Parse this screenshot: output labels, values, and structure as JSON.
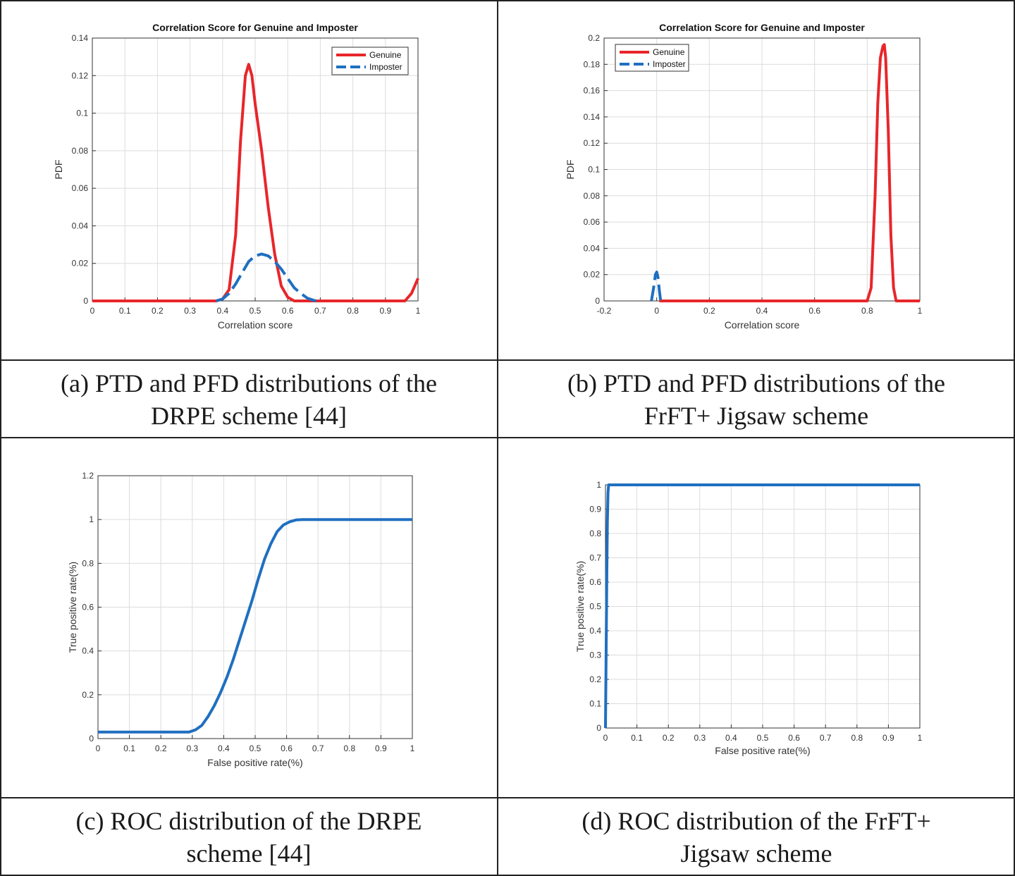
{
  "colors": {
    "genuine": "#e8262a",
    "imposter": "#1f6fc0",
    "grid": "#dcdcdc",
    "border": "#222222"
  },
  "captions": {
    "a": [
      "(a) PTD and PFD distributions of the",
      "DRPE scheme [44]"
    ],
    "b": [
      "(b) PTD and PFD distributions of the",
      "FrFT+ Jigsaw scheme"
    ],
    "c": [
      "(c) ROC distribution of the DRPE",
      "scheme [44]"
    ],
    "d": [
      "(d) ROC distribution of the FrFT+",
      "Jigsaw scheme"
    ]
  },
  "chart_data": [
    {
      "id": "a",
      "type": "line",
      "title": "Correlation Score for Genuine and Imposter",
      "xlabel": "Correlation score",
      "ylabel": "PDF",
      "xlim": [
        0,
        1
      ],
      "ylim": [
        0,
        0.14
      ],
      "xticks": [
        "0",
        "0.1",
        "0.2",
        "0.3",
        "0.4",
        "0.5",
        "0.6",
        "0.7",
        "0.8",
        "0.9",
        "1"
      ],
      "yticks": [
        "0",
        "0.02",
        "0.04",
        "0.06",
        "0.08",
        "0.1",
        "0.12",
        "0.14"
      ],
      "grid": true,
      "legend": "top-right",
      "series": [
        {
          "name": "Genuine",
          "style": "solid",
          "color": "#e8262a",
          "x": [
            0,
            0.38,
            0.4,
            0.42,
            0.44,
            0.455,
            0.47,
            0.48,
            0.49,
            0.5,
            0.52,
            0.54,
            0.56,
            0.58,
            0.6,
            0.62,
            0.96,
            0.98,
            1.0
          ],
          "y": [
            0,
            0,
            0.001,
            0.006,
            0.035,
            0.085,
            0.12,
            0.126,
            0.12,
            0.105,
            0.08,
            0.05,
            0.025,
            0.008,
            0.002,
            0,
            0,
            0.004,
            0.012
          ]
        },
        {
          "name": "Imposter",
          "style": "dashed",
          "color": "#1f6fc0",
          "x": [
            0.38,
            0.4,
            0.42,
            0.44,
            0.46,
            0.48,
            0.5,
            0.52,
            0.54,
            0.56,
            0.58,
            0.6,
            0.62,
            0.64,
            0.66,
            0.68,
            0.69
          ],
          "y": [
            0,
            0.001,
            0.004,
            0.009,
            0.015,
            0.021,
            0.024,
            0.025,
            0.024,
            0.021,
            0.017,
            0.012,
            0.007,
            0.004,
            0.0015,
            0.0003,
            0
          ]
        }
      ]
    },
    {
      "id": "b",
      "type": "line",
      "title": "Correlation Score for Genuine and Imposter",
      "xlabel": "Correlation score",
      "ylabel": "PDF",
      "xlim": [
        -0.2,
        1
      ],
      "ylim": [
        0,
        0.2
      ],
      "xticks": [
        "-0.2",
        "0",
        "0.2",
        "0.4",
        "0.6",
        "0.8",
        "1"
      ],
      "yticks": [
        "0",
        "0.02",
        "0.04",
        "0.06",
        "0.08",
        "0.1",
        "0.12",
        "0.14",
        "0.16",
        "0.18",
        "0.2"
      ],
      "grid": true,
      "legend": "top-left",
      "series": [
        {
          "name": "Genuine",
          "style": "solid",
          "color": "#e8262a",
          "x": [
            0.01,
            0.8,
            0.815,
            0.83,
            0.84,
            0.85,
            0.86,
            0.865,
            0.87,
            0.88,
            0.89,
            0.9,
            0.91,
            0.93,
            1.0
          ],
          "y": [
            0,
            0,
            0.01,
            0.08,
            0.15,
            0.185,
            0.194,
            0.195,
            0.185,
            0.13,
            0.05,
            0.01,
            0,
            0,
            0
          ]
        },
        {
          "name": "Imposter",
          "style": "dashed",
          "color": "#1f6fc0",
          "x": [
            -0.02,
            -0.01,
            -0.005,
            0,
            0.005,
            0.01,
            0.015
          ],
          "y": [
            0,
            0.012,
            0.02,
            0.022,
            0.018,
            0.008,
            0
          ]
        }
      ]
    },
    {
      "id": "c",
      "type": "line",
      "title": "",
      "xlabel": "False positive rate(%)",
      "ylabel": "True positive rate(%)",
      "xlim": [
        0,
        1
      ],
      "ylim": [
        0,
        1.2
      ],
      "xticks": [
        "0",
        "0.1",
        "0.2",
        "0.3",
        "0.4",
        "0.5",
        "0.6",
        "0.7",
        "0.8",
        "0.9",
        "1"
      ],
      "yticks": [
        "0",
        "0.2",
        "0.4",
        "0.6",
        "0.8",
        "1",
        "1.2"
      ],
      "grid": true,
      "series": [
        {
          "name": "ROC",
          "style": "solid",
          "color": "#1f6fc0",
          "x": [
            0,
            0.29,
            0.31,
            0.33,
            0.35,
            0.37,
            0.39,
            0.41,
            0.43,
            0.45,
            0.47,
            0.49,
            0.51,
            0.53,
            0.55,
            0.57,
            0.59,
            0.61,
            0.63,
            0.65,
            0.7,
            1.0
          ],
          "y": [
            0.03,
            0.03,
            0.04,
            0.06,
            0.1,
            0.15,
            0.21,
            0.28,
            0.36,
            0.45,
            0.54,
            0.63,
            0.73,
            0.82,
            0.89,
            0.945,
            0.975,
            0.99,
            0.998,
            1.0,
            1.0,
            1.0
          ]
        }
      ]
    },
    {
      "id": "d",
      "type": "line",
      "title": "",
      "xlabel": "False positive rate(%)",
      "ylabel": "True positive rate(%)",
      "xlim": [
        0,
        1
      ],
      "ylim": [
        0,
        1
      ],
      "xticks": [
        "0",
        "0.1",
        "0.2",
        "0.3",
        "0.4",
        "0.5",
        "0.6",
        "0.7",
        "0.8",
        "0.9",
        "1"
      ],
      "yticks": [
        "0",
        "0.1",
        "0.2",
        "0.3",
        "0.4",
        "0.5",
        "0.6",
        "0.7",
        "0.8",
        "0.9",
        "1"
      ],
      "grid": true,
      "series": [
        {
          "name": "ROC",
          "style": "solid",
          "color": "#1f6fc0",
          "x": [
            0,
            0.002,
            0.004,
            0.006,
            0.008,
            0.01,
            0.02,
            1.0
          ],
          "y": [
            0,
            0.3,
            0.6,
            0.85,
            0.97,
            1.0,
            1.0,
            1.0
          ]
        }
      ]
    }
  ]
}
